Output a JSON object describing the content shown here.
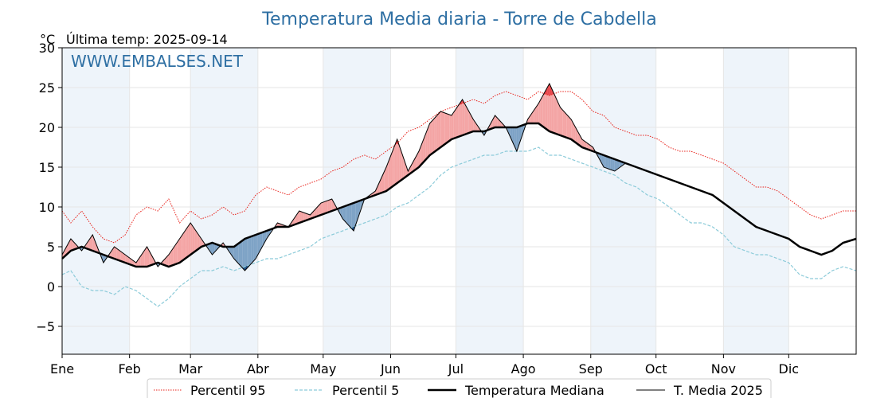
{
  "chart_data": {
    "type": "line",
    "title": "Temperatura Media diaria - Torre de Cabdella",
    "unit_label": "°C",
    "last_temp_label": "Última temp: 2025-09-14",
    "watermark": "WWW.EMBALSES.NET",
    "ylim": [
      -8.5,
      30
    ],
    "yticks": [
      -5,
      0,
      5,
      10,
      15,
      20,
      25,
      30
    ],
    "ytick_labels": [
      "−5",
      "0",
      "5",
      "10",
      "15",
      "20",
      "25",
      "30"
    ],
    "xlim": [
      1,
      366
    ],
    "month_starts": [
      1,
      32,
      60,
      91,
      121,
      152,
      182,
      213,
      244,
      274,
      305,
      335
    ],
    "month_labels": [
      "Ene",
      "Feb",
      "Mar",
      "Abr",
      "May",
      "Jun",
      "Jul",
      "Ago",
      "Sep",
      "Oct",
      "Nov",
      "Dic"
    ],
    "grid": true,
    "legend_position": "bottom-center",
    "colors": {
      "title": "#2e6fa3",
      "p95": "#e8211a",
      "p5": "#8ccbd9",
      "median": "#000000",
      "current": "#000000",
      "above_fill": "#f4a5a5",
      "above_extreme_fill": "#e8474c",
      "below_fill": "#7ea3c6",
      "below_extreme_fill": "#1f4e85",
      "month_band": "#eef4fa"
    },
    "series": [
      {
        "name": "Percentil 95",
        "style": "dotted",
        "points": [
          [
            1,
            9.5
          ],
          [
            5,
            8.0
          ],
          [
            10,
            9.5
          ],
          [
            15,
            7.5
          ],
          [
            20,
            6.0
          ],
          [
            25,
            5.5
          ],
          [
            30,
            6.5
          ],
          [
            35,
            9.0
          ],
          [
            40,
            10.0
          ],
          [
            45,
            9.5
          ],
          [
            50,
            11.0
          ],
          [
            55,
            8.0
          ],
          [
            60,
            9.5
          ],
          [
            65,
            8.5
          ],
          [
            70,
            9.0
          ],
          [
            75,
            10.0
          ],
          [
            80,
            9.0
          ],
          [
            85,
            9.5
          ],
          [
            90,
            11.5
          ],
          [
            95,
            12.5
          ],
          [
            100,
            12.0
          ],
          [
            105,
            11.5
          ],
          [
            110,
            12.5
          ],
          [
            115,
            13.0
          ],
          [
            120,
            13.5
          ],
          [
            125,
            14.5
          ],
          [
            130,
            15.0
          ],
          [
            135,
            16.0
          ],
          [
            140,
            16.5
          ],
          [
            145,
            16.0
          ],
          [
            150,
            17.0
          ],
          [
            155,
            18.0
          ],
          [
            160,
            19.5
          ],
          [
            165,
            20.0
          ],
          [
            170,
            21.0
          ],
          [
            175,
            22.0
          ],
          [
            180,
            22.5
          ],
          [
            185,
            23.0
          ],
          [
            190,
            23.5
          ],
          [
            195,
            23.0
          ],
          [
            200,
            24.0
          ],
          [
            205,
            24.5
          ],
          [
            210,
            24.0
          ],
          [
            215,
            23.5
          ],
          [
            220,
            24.5
          ],
          [
            225,
            24.0
          ],
          [
            230,
            24.5
          ],
          [
            235,
            24.5
          ],
          [
            240,
            23.5
          ],
          [
            245,
            22.0
          ],
          [
            250,
            21.5
          ],
          [
            255,
            20.0
          ],
          [
            260,
            19.5
          ],
          [
            265,
            19.0
          ],
          [
            270,
            19.0
          ],
          [
            275,
            18.5
          ],
          [
            280,
            17.5
          ],
          [
            285,
            17.0
          ],
          [
            290,
            17.0
          ],
          [
            295,
            16.5
          ],
          [
            300,
            16.0
          ],
          [
            305,
            15.5
          ],
          [
            310,
            14.5
          ],
          [
            315,
            13.5
          ],
          [
            320,
            12.5
          ],
          [
            325,
            12.5
          ],
          [
            330,
            12.0
          ],
          [
            335,
            11.0
          ],
          [
            340,
            10.0
          ],
          [
            345,
            9.0
          ],
          [
            350,
            8.5
          ],
          [
            355,
            9.0
          ],
          [
            360,
            9.5
          ],
          [
            366,
            9.5
          ]
        ]
      },
      {
        "name": "Percentil 5",
        "style": "dashed",
        "points": [
          [
            1,
            1.5
          ],
          [
            5,
            2.0
          ],
          [
            10,
            0.0
          ],
          [
            15,
            -0.5
          ],
          [
            20,
            -0.5
          ],
          [
            25,
            -1.0
          ],
          [
            30,
            0.0
          ],
          [
            35,
            -0.5
          ],
          [
            40,
            -1.5
          ],
          [
            45,
            -2.5
          ],
          [
            50,
            -1.5
          ],
          [
            55,
            0.0
          ],
          [
            60,
            1.0
          ],
          [
            65,
            2.0
          ],
          [
            70,
            2.0
          ],
          [
            75,
            2.5
          ],
          [
            80,
            2.0
          ],
          [
            85,
            2.5
          ],
          [
            90,
            3.0
          ],
          [
            95,
            3.5
          ],
          [
            100,
            3.5
          ],
          [
            105,
            4.0
          ],
          [
            110,
            4.5
          ],
          [
            115,
            5.0
          ],
          [
            120,
            6.0
          ],
          [
            125,
            6.5
          ],
          [
            130,
            7.0
          ],
          [
            135,
            7.5
          ],
          [
            140,
            8.0
          ],
          [
            145,
            8.5
          ],
          [
            150,
            9.0
          ],
          [
            155,
            10.0
          ],
          [
            160,
            10.5
          ],
          [
            165,
            11.5
          ],
          [
            170,
            12.5
          ],
          [
            175,
            14.0
          ],
          [
            180,
            15.0
          ],
          [
            185,
            15.5
          ],
          [
            190,
            16.0
          ],
          [
            195,
            16.5
          ],
          [
            200,
            16.5
          ],
          [
            205,
            17.0
          ],
          [
            210,
            17.0
          ],
          [
            215,
            17.0
          ],
          [
            220,
            17.5
          ],
          [
            225,
            16.5
          ],
          [
            230,
            16.5
          ],
          [
            235,
            16.0
          ],
          [
            240,
            15.5
          ],
          [
            245,
            15.0
          ],
          [
            250,
            14.5
          ],
          [
            255,
            14.0
          ],
          [
            260,
            13.0
          ],
          [
            265,
            12.5
          ],
          [
            270,
            11.5
          ],
          [
            275,
            11.0
          ],
          [
            280,
            10.0
          ],
          [
            285,
            9.0
          ],
          [
            290,
            8.0
          ],
          [
            295,
            8.0
          ],
          [
            300,
            7.5
          ],
          [
            305,
            6.5
          ],
          [
            310,
            5.0
          ],
          [
            315,
            4.5
          ],
          [
            320,
            4.0
          ],
          [
            325,
            4.0
          ],
          [
            330,
            3.5
          ],
          [
            335,
            3.0
          ],
          [
            340,
            1.5
          ],
          [
            345,
            1.0
          ],
          [
            350,
            1.0
          ],
          [
            355,
            2.0
          ],
          [
            360,
            2.5
          ],
          [
            366,
            2.0
          ]
        ]
      },
      {
        "name": "Temperatura Mediana",
        "style": "bold",
        "points": [
          [
            1,
            3.5
          ],
          [
            5,
            4.5
          ],
          [
            10,
            5.0
          ],
          [
            15,
            4.5
          ],
          [
            20,
            4.0
          ],
          [
            25,
            3.5
          ],
          [
            30,
            3.0
          ],
          [
            35,
            2.5
          ],
          [
            40,
            2.5
          ],
          [
            45,
            3.0
          ],
          [
            50,
            2.5
          ],
          [
            55,
            3.0
          ],
          [
            60,
            4.0
          ],
          [
            65,
            5.0
          ],
          [
            70,
            5.5
          ],
          [
            75,
            5.0
          ],
          [
            80,
            5.0
          ],
          [
            85,
            6.0
          ],
          [
            90,
            6.5
          ],
          [
            95,
            7.0
          ],
          [
            100,
            7.5
          ],
          [
            105,
            7.5
          ],
          [
            110,
            8.0
          ],
          [
            115,
            8.5
          ],
          [
            120,
            9.0
          ],
          [
            125,
            9.5
          ],
          [
            130,
            10.0
          ],
          [
            135,
            10.5
          ],
          [
            140,
            11.0
          ],
          [
            145,
            11.5
          ],
          [
            150,
            12.0
          ],
          [
            155,
            13.0
          ],
          [
            160,
            14.0
          ],
          [
            165,
            15.0
          ],
          [
            170,
            16.5
          ],
          [
            175,
            17.5
          ],
          [
            180,
            18.5
          ],
          [
            185,
            19.0
          ],
          [
            190,
            19.5
          ],
          [
            195,
            19.5
          ],
          [
            200,
            20.0
          ],
          [
            205,
            20.0
          ],
          [
            210,
            20.0
          ],
          [
            215,
            20.5
          ],
          [
            220,
            20.5
          ],
          [
            225,
            19.5
          ],
          [
            230,
            19.0
          ],
          [
            235,
            18.5
          ],
          [
            240,
            17.5
          ],
          [
            245,
            17.0
          ],
          [
            250,
            16.5
          ],
          [
            255,
            16.0
          ],
          [
            260,
            15.5
          ],
          [
            265,
            15.0
          ],
          [
            270,
            14.5
          ],
          [
            275,
            14.0
          ],
          [
            280,
            13.5
          ],
          [
            285,
            13.0
          ],
          [
            290,
            12.5
          ],
          [
            295,
            12.0
          ],
          [
            300,
            11.5
          ],
          [
            305,
            10.5
          ],
          [
            310,
            9.5
          ],
          [
            315,
            8.5
          ],
          [
            320,
            7.5
          ],
          [
            325,
            7.0
          ],
          [
            330,
            6.5
          ],
          [
            335,
            6.0
          ],
          [
            340,
            5.0
          ],
          [
            345,
            4.5
          ],
          [
            350,
            4.0
          ],
          [
            355,
            4.5
          ],
          [
            360,
            5.5
          ],
          [
            366,
            6.0
          ]
        ]
      },
      {
        "name": "T. Media 2025",
        "style": "thin",
        "points": [
          [
            1,
            4.0
          ],
          [
            5,
            6.0
          ],
          [
            10,
            4.5
          ],
          [
            15,
            6.5
          ],
          [
            20,
            3.0
          ],
          [
            25,
            5.0
          ],
          [
            30,
            4.0
          ],
          [
            35,
            3.0
          ],
          [
            40,
            5.0
          ],
          [
            45,
            2.5
          ],
          [
            50,
            4.0
          ],
          [
            55,
            6.0
          ],
          [
            60,
            8.0
          ],
          [
            65,
            6.0
          ],
          [
            70,
            4.0
          ],
          [
            75,
            5.5
          ],
          [
            80,
            3.5
          ],
          [
            85,
            2.0
          ],
          [
            90,
            3.5
          ],
          [
            95,
            6.0
          ],
          [
            100,
            8.0
          ],
          [
            105,
            7.5
          ],
          [
            110,
            9.5
          ],
          [
            115,
            9.0
          ],
          [
            120,
            10.5
          ],
          [
            125,
            11.0
          ],
          [
            130,
            8.5
          ],
          [
            135,
            7.0
          ],
          [
            140,
            11.0
          ],
          [
            145,
            12.0
          ],
          [
            150,
            15.0
          ],
          [
            155,
            18.5
          ],
          [
            160,
            14.5
          ],
          [
            165,
            17.0
          ],
          [
            170,
            20.5
          ],
          [
            175,
            22.0
          ],
          [
            180,
            21.5
          ],
          [
            185,
            23.5
          ],
          [
            190,
            21.0
          ],
          [
            195,
            19.0
          ],
          [
            200,
            21.5
          ],
          [
            205,
            20.0
          ],
          [
            210,
            17.0
          ],
          [
            215,
            21.0
          ],
          [
            220,
            23.0
          ],
          [
            225,
            25.5
          ],
          [
            230,
            22.5
          ],
          [
            235,
            21.0
          ],
          [
            240,
            18.5
          ],
          [
            245,
            17.5
          ],
          [
            250,
            15.0
          ],
          [
            255,
            14.5
          ],
          [
            260,
            15.5
          ]
        ]
      }
    ]
  }
}
